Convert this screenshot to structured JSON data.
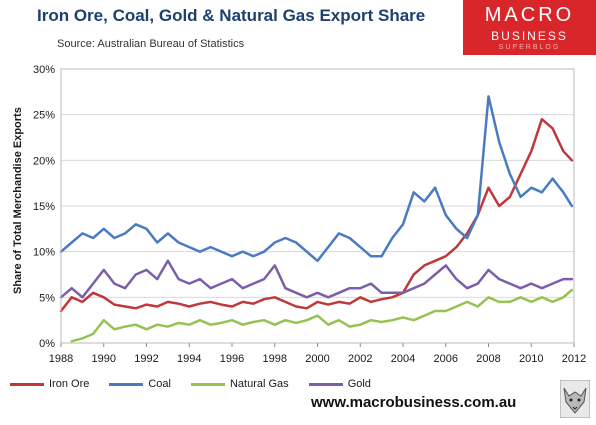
{
  "header": {
    "title": "Iron Ore, Coal, Gold & Natural Gas Export Share",
    "source": "Source:  Australian Bureau of Statistics"
  },
  "logo": {
    "line1": "MACRO",
    "line2": "BUSINESS",
    "line3": "SUPERBLOG"
  },
  "footer": {
    "url": "www.macrobusiness.com.au"
  },
  "colors": {
    "iron_ore": "#c0383a",
    "coal": "#4a7bc0",
    "natural_gas": "#94c353",
    "gold": "#7b5fa8"
  },
  "chart_data": {
    "type": "line",
    "ylabel": "Share of Total Merchandise Exports",
    "xlabel": "",
    "xlim": [
      1988,
      2012
    ],
    "ylim": [
      0,
      30
    ],
    "xticks": [
      "1988",
      "1990",
      "1992",
      "1994",
      "1996",
      "1998",
      "2000",
      "2002",
      "2004",
      "2006",
      "2008",
      "2010",
      "2012"
    ],
    "yticks": [
      "0%",
      "5%",
      "10%",
      "15%",
      "20%",
      "25%",
      "30%"
    ],
    "grid": true,
    "legend": "bottom",
    "series": [
      {
        "name": "Iron Ore",
        "color": "#c0383a",
        "x": [
          1988.0,
          1988.5,
          1989.0,
          1989.5,
          1990.0,
          1990.5,
          1991.0,
          1991.5,
          1992.0,
          1992.5,
          1993.0,
          1993.5,
          1994.0,
          1994.5,
          1995.0,
          1995.5,
          1996.0,
          1996.5,
          1997.0,
          1997.5,
          1998.0,
          1998.5,
          1999.0,
          1999.5,
          2000.0,
          2000.5,
          2001.0,
          2001.5,
          2002.0,
          2002.5,
          2003.0,
          2003.5,
          2004.0,
          2004.5,
          2005.0,
          2005.5,
          2006.0,
          2006.5,
          2007.0,
          2007.5,
          2008.0,
          2008.5,
          2009.0,
          2009.5,
          2010.0,
          2010.5,
          2011.0,
          2011.5,
          2011.9
        ],
        "values": [
          3.5,
          5.0,
          4.5,
          5.5,
          5.0,
          4.2,
          4.0,
          3.8,
          4.2,
          4.0,
          4.5,
          4.3,
          4.0,
          4.3,
          4.5,
          4.2,
          4.0,
          4.5,
          4.3,
          4.8,
          5.0,
          4.5,
          4.0,
          3.8,
          4.5,
          4.2,
          4.5,
          4.3,
          5.0,
          4.5,
          4.8,
          5.0,
          5.5,
          7.5,
          8.5,
          9.0,
          9.5,
          10.5,
          12.0,
          14.0,
          17.0,
          15.0,
          16.0,
          18.5,
          21.0,
          24.5,
          23.5,
          21.0,
          20.0
        ]
      },
      {
        "name": "Coal",
        "color": "#4a7bc0",
        "x": [
          1988.0,
          1988.5,
          1989.0,
          1989.5,
          1990.0,
          1990.5,
          1991.0,
          1991.5,
          1992.0,
          1992.5,
          1993.0,
          1993.5,
          1994.0,
          1994.5,
          1995.0,
          1995.5,
          1996.0,
          1996.5,
          1997.0,
          1997.5,
          1998.0,
          1998.5,
          1999.0,
          1999.5,
          2000.0,
          2000.5,
          2001.0,
          2001.5,
          2002.0,
          2002.5,
          2003.0,
          2003.5,
          2004.0,
          2004.5,
          2005.0,
          2005.5,
          2006.0,
          2006.5,
          2007.0,
          2007.5,
          2008.0,
          2008.5,
          2009.0,
          2009.5,
          2010.0,
          2010.5,
          2011.0,
          2011.5,
          2011.9
        ],
        "values": [
          10.0,
          11.0,
          12.0,
          11.5,
          12.5,
          11.5,
          12.0,
          13.0,
          12.5,
          11.0,
          12.0,
          11.0,
          10.5,
          10.0,
          10.5,
          10.0,
          9.5,
          10.0,
          9.5,
          10.0,
          11.0,
          11.5,
          11.0,
          10.0,
          9.0,
          10.5,
          12.0,
          11.5,
          10.5,
          9.5,
          9.5,
          11.5,
          13.0,
          16.5,
          15.5,
          17.0,
          14.0,
          12.5,
          11.5,
          14.0,
          27.0,
          22.0,
          18.5,
          16.0,
          17.0,
          16.5,
          18.0,
          16.5,
          15.0
        ]
      },
      {
        "name": "Natural Gas",
        "color": "#94c353",
        "x": [
          1988.5,
          1989.0,
          1989.5,
          1990.0,
          1990.5,
          1991.0,
          1991.5,
          1992.0,
          1992.5,
          1993.0,
          1993.5,
          1994.0,
          1994.5,
          1995.0,
          1995.5,
          1996.0,
          1996.5,
          1997.0,
          1997.5,
          1998.0,
          1998.5,
          1999.0,
          1999.5,
          2000.0,
          2000.5,
          2001.0,
          2001.5,
          2002.0,
          2002.5,
          2003.0,
          2003.5,
          2004.0,
          2004.5,
          2005.0,
          2005.5,
          2006.0,
          2006.5,
          2007.0,
          2007.5,
          2008.0,
          2008.5,
          2009.0,
          2009.5,
          2010.0,
          2010.5,
          2011.0,
          2011.5,
          2011.9
        ],
        "values": [
          0.2,
          0.5,
          1.0,
          2.5,
          1.5,
          1.8,
          2.0,
          1.5,
          2.0,
          1.8,
          2.2,
          2.0,
          2.5,
          2.0,
          2.2,
          2.5,
          2.0,
          2.3,
          2.5,
          2.0,
          2.5,
          2.2,
          2.5,
          3.0,
          2.0,
          2.5,
          1.8,
          2.0,
          2.5,
          2.3,
          2.5,
          2.8,
          2.5,
          3.0,
          3.5,
          3.5,
          4.0,
          4.5,
          4.0,
          5.0,
          4.5,
          4.5,
          5.0,
          4.5,
          5.0,
          4.5,
          5.0,
          5.8
        ]
      },
      {
        "name": "Gold",
        "color": "#7b5fa8",
        "x": [
          1988.0,
          1988.5,
          1989.0,
          1989.5,
          1990.0,
          1990.5,
          1991.0,
          1991.5,
          1992.0,
          1992.5,
          1993.0,
          1993.5,
          1994.0,
          1994.5,
          1995.0,
          1995.5,
          1996.0,
          1996.5,
          1997.0,
          1997.5,
          1998.0,
          1998.5,
          1999.0,
          1999.5,
          2000.0,
          2000.5,
          2001.0,
          2001.5,
          2002.0,
          2002.5,
          2003.0,
          2003.5,
          2004.0,
          2004.5,
          2005.0,
          2005.5,
          2006.0,
          2006.5,
          2007.0,
          2007.5,
          2008.0,
          2008.5,
          2009.0,
          2009.5,
          2010.0,
          2010.5,
          2011.0,
          2011.5,
          2011.9
        ],
        "values": [
          5.0,
          6.0,
          5.0,
          6.5,
          8.0,
          6.5,
          6.0,
          7.5,
          8.0,
          7.0,
          9.0,
          7.0,
          6.5,
          7.0,
          6.0,
          6.5,
          7.0,
          6.0,
          6.5,
          7.0,
          8.5,
          6.0,
          5.5,
          5.0,
          5.5,
          5.0,
          5.5,
          6.0,
          6.0,
          6.5,
          5.5,
          5.5,
          5.5,
          6.0,
          6.5,
          7.5,
          8.5,
          7.0,
          6.0,
          6.5,
          8.0,
          7.0,
          6.5,
          6.0,
          6.5,
          6.0,
          6.5,
          7.0,
          7.0
        ]
      }
    ]
  }
}
